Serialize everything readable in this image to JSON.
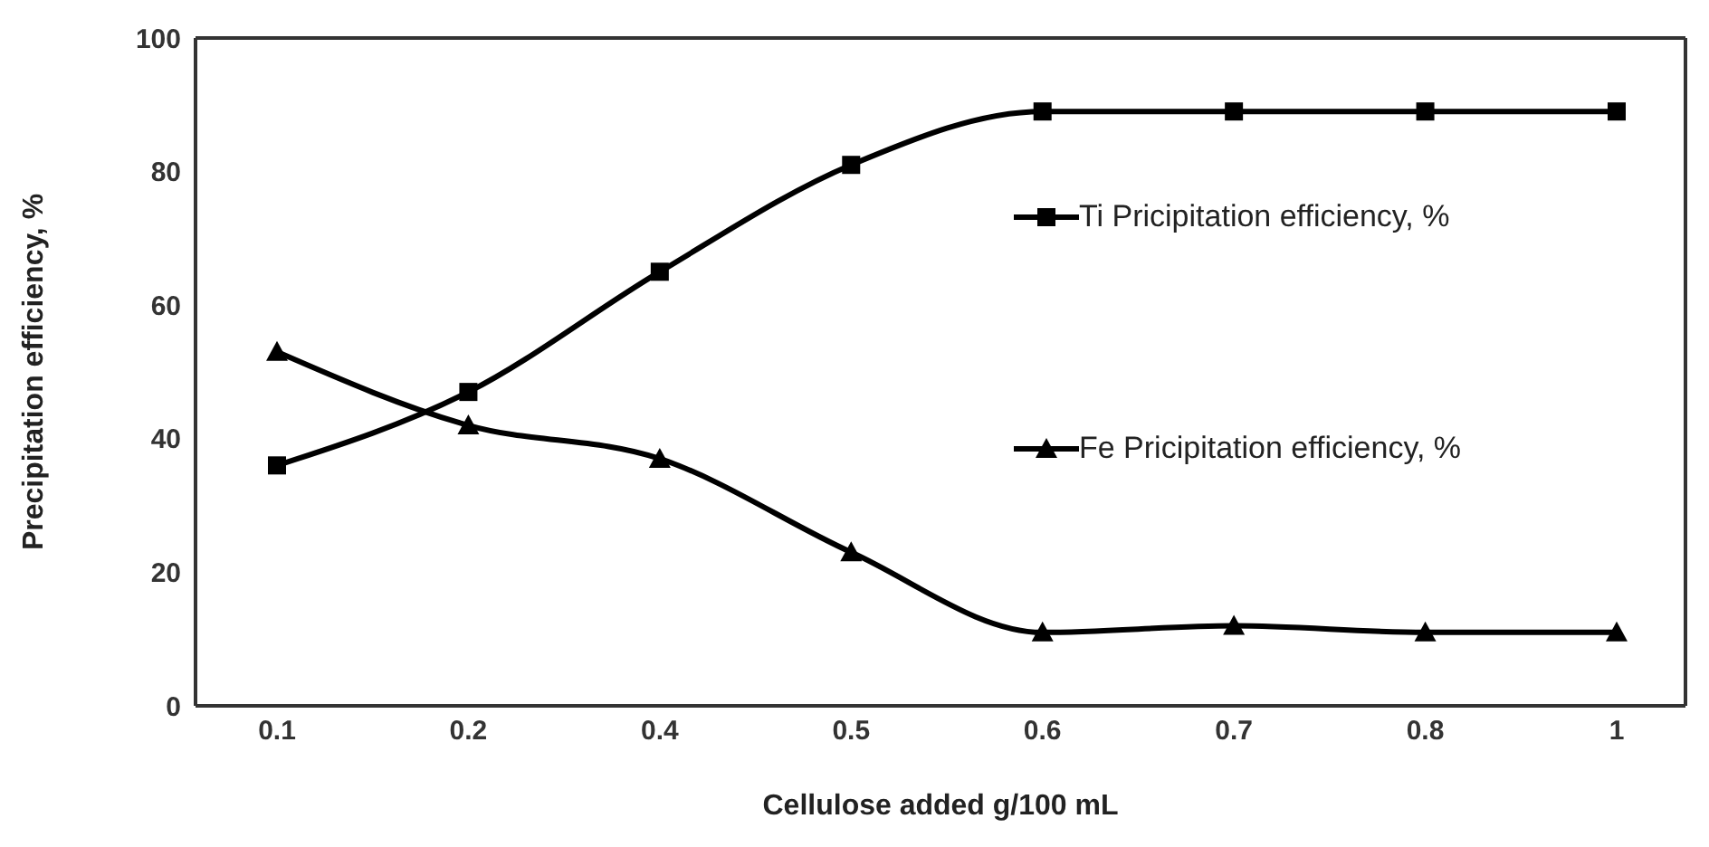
{
  "chart_data": {
    "type": "line",
    "xlabel": "Cellulose added g/100 mL",
    "ylabel": "Precipitation efficiency, %",
    "categories": [
      "0.1",
      "0.2",
      "0.4",
      "0.5",
      "0.6",
      "0.7",
      "0.8",
      "1"
    ],
    "series": [
      {
        "name": "Ti Pricipitation efficiency, %",
        "color": "#000000",
        "marker": "square",
        "values": [
          36,
          47,
          65,
          81,
          89,
          89,
          89,
          89
        ]
      },
      {
        "name": "Fe Pricipitation efficiency, %",
        "color": "#000000",
        "marker": "triangle",
        "values": [
          53,
          42,
          37,
          23,
          11,
          12,
          11,
          11
        ]
      }
    ],
    "ylim": [
      0,
      100
    ],
    "yticks": [
      0,
      20,
      40,
      60,
      80,
      100
    ],
    "grid": false,
    "legend": "right",
    "line_style": "solid"
  }
}
